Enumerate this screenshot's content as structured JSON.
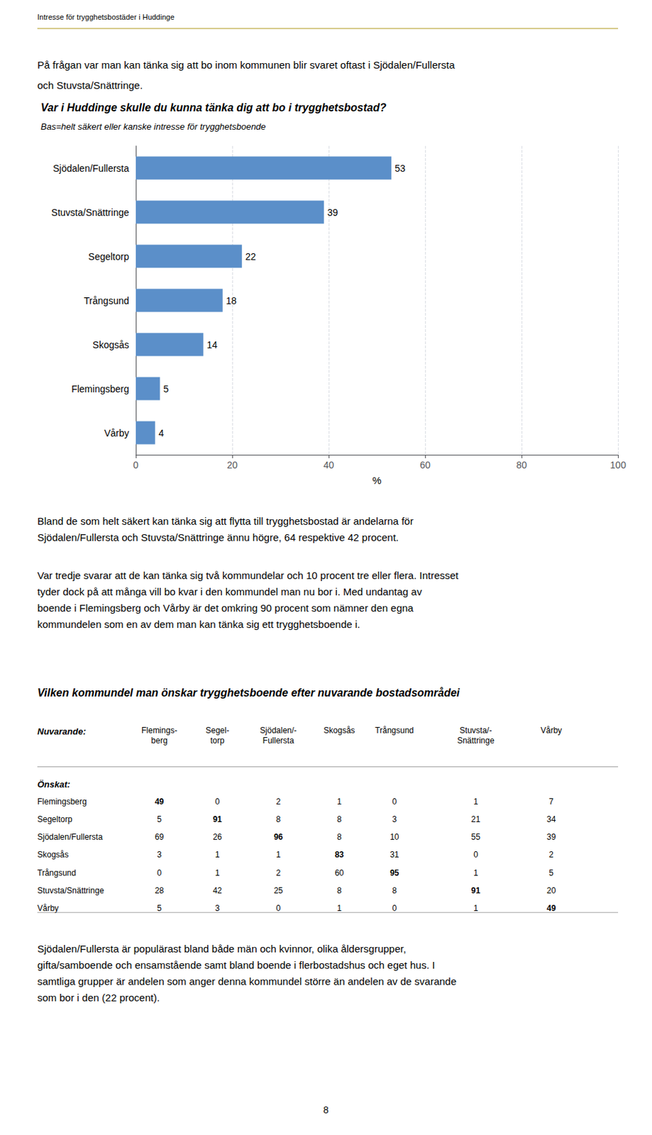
{
  "page_header": "Intresse för trygghetsbostäder i Huddinge",
  "header_line_color": "#c8b864",
  "intro": [
    "På frågan var man kan tänka sig att bo inom kommunen blir svaret oftast i Sjödalen/Fullersta",
    "och Stuvsta/Snättringe."
  ],
  "chart_data": [
    {
      "type": "bar",
      "orientation": "horizontal",
      "title": "Var i Huddinge skulle du kunna tänka dig att bo i trygghetsbostad?",
      "subtitle": "Bas=helt säkert eller kanske intresse för trygghetsboende",
      "categories": [
        "Sjödalen/Fullersta",
        "Stuvsta/Snättringe",
        "Segeltorp",
        "Trångsund",
        "Skogsås",
        "Flemingsberg",
        "Vårby"
      ],
      "values": [
        53,
        39,
        22,
        18,
        14,
        5,
        4
      ],
      "color": "#5b8fc9",
      "xlim": [
        0,
        100
      ],
      "xticks": [
        0,
        20,
        40,
        60,
        80,
        100
      ],
      "xlabel": "%",
      "grid": true,
      "data_labels": true
    },
    {
      "type": "table",
      "title": "Vilken kommundel man önskar trygghetsboende efter nuvarande bostadsområdei",
      "column_header": "Nuvarande:",
      "columns": [
        "Flemings-\nberg",
        "Segel-\ntorp",
        "Sjödalen/-\nFullersta",
        "Skogsås",
        "Trångsund",
        "Stuvsta/-\nSnättringe",
        "Vårby"
      ],
      "row_header": "Önskat:",
      "rows": [
        [
          "Flemingsberg",
          "49",
          "0",
          "2",
          "1",
          "0",
          "1",
          "7"
        ],
        [
          "Segeltorp",
          "5",
          "91",
          "8",
          "8",
          "3",
          "21",
          "34"
        ],
        [
          "Sjödalen/Fullersta",
          "69",
          "26",
          "96",
          "8",
          "10",
          "55",
          "39"
        ],
        [
          "Skogsås",
          "3",
          "1",
          "1",
          "83",
          "31",
          "0",
          "2"
        ],
        [
          "Trångsund",
          "0",
          "1",
          "2",
          "60",
          "95",
          "1",
          "5"
        ],
        [
          "Stuvsta/Snättringe",
          "28",
          "42",
          "25",
          "8",
          "8",
          "91",
          "20"
        ],
        [
          "Vårby",
          "5",
          "3",
          "0",
          "1",
          "0",
          "1",
          "49"
        ]
      ]
    }
  ],
  "text_after_chart": [
    [
      "Bland de som helt säkert kan tänka sig att flytta till trygghetsbostad är andelarna för",
      "Sjödalen/Fullersta och Stuvsta/Snättringe ännu högre, 64 respektive 42 procent."
    ],
    [
      "Var tredje svarar att de kan tänka sig två kommundelar och 10 procent tre eller flera. Intresset",
      "tyder dock på att många vill bo kvar i den kommundel man nu bor i. Med undantag av",
      "boende i Flemingsberg och Vårby är det omkring 90 procent som nämner den egna",
      "kommundelen som en av dem man kan tänka sig ett trygghetsboende i."
    ]
  ],
  "text_after_table": [
    "Sjödalen/Fullersta är populärast bland både män och kvinnor, olika åldersgrupper,",
    "gifta/samboende och ensamstående samt bland boende i flerbostadshus och eget hus. I",
    "samtliga grupper är andelen som anger denna kommundel större än andelen av de svarande",
    "som bor i den (22 procent)."
  ],
  "page_number": "8"
}
